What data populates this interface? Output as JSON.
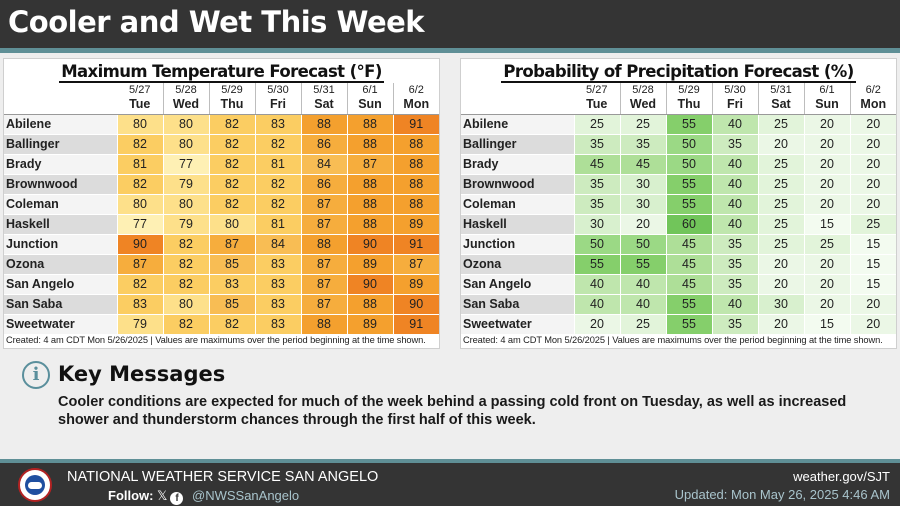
{
  "header": {
    "title": "Cooler and Wet This Week"
  },
  "temp_table": {
    "title": "Maximum Temperature Forecast (°F)",
    "footnote": "Created: 4 am CDT Mon 5/26/2025  |  Values are maximums over the period beginning at the time shown.",
    "dates": [
      "5/27",
      "5/28",
      "5/29",
      "5/30",
      "5/31",
      "6/1",
      "6/2"
    ],
    "days": [
      "Tue",
      "Wed",
      "Thu",
      "Fri",
      "Sat",
      "Sun",
      "Mon"
    ],
    "rows": [
      {
        "location": "Abilene",
        "values": [
          "80",
          "80",
          "82",
          "83",
          "88",
          "88",
          "91"
        ]
      },
      {
        "location": "Ballinger",
        "values": [
          "82",
          "80",
          "82",
          "82",
          "86",
          "88",
          "88"
        ]
      },
      {
        "location": "Brady",
        "values": [
          "81",
          "77",
          "82",
          "81",
          "84",
          "87",
          "88"
        ]
      },
      {
        "location": "Brownwood",
        "values": [
          "82",
          "79",
          "82",
          "82",
          "86",
          "88",
          "88"
        ]
      },
      {
        "location": "Coleman",
        "values": [
          "80",
          "80",
          "82",
          "82",
          "87",
          "88",
          "88"
        ]
      },
      {
        "location": "Haskell",
        "values": [
          "77",
          "79",
          "80",
          "81",
          "87",
          "88",
          "89"
        ]
      },
      {
        "location": "Junction",
        "values": [
          "90",
          "82",
          "87",
          "84",
          "88",
          "90",
          "91"
        ]
      },
      {
        "location": "Ozona",
        "values": [
          "87",
          "82",
          "85",
          "83",
          "87",
          "89",
          "87"
        ]
      },
      {
        "location": "San Angelo",
        "values": [
          "82",
          "82",
          "83",
          "83",
          "87",
          "90",
          "89"
        ]
      },
      {
        "location": "San Saba",
        "values": [
          "83",
          "80",
          "85",
          "83",
          "87",
          "88",
          "90"
        ]
      },
      {
        "location": "Sweetwater",
        "values": [
          "79",
          "82",
          "82",
          "83",
          "88",
          "89",
          "91"
        ]
      }
    ]
  },
  "precip_table": {
    "title": "Probability of Precipitation Forecast (%)",
    "footnote": "Created: 4 am CDT Mon 5/26/2025  |  Values are maximums over the period beginning at the time shown.",
    "dates": [
      "5/27",
      "5/28",
      "5/29",
      "5/30",
      "5/31",
      "6/1",
      "6/2"
    ],
    "days": [
      "Tue",
      "Wed",
      "Thu",
      "Fri",
      "Sat",
      "Sun",
      "Mon"
    ],
    "rows": [
      {
        "location": "Abilene",
        "values": [
          "25",
          "25",
          "55",
          "40",
          "25",
          "20",
          "20"
        ]
      },
      {
        "location": "Ballinger",
        "values": [
          "35",
          "35",
          "50",
          "35",
          "20",
          "20",
          "20"
        ]
      },
      {
        "location": "Brady",
        "values": [
          "45",
          "45",
          "50",
          "40",
          "25",
          "20",
          "20"
        ]
      },
      {
        "location": "Brownwood",
        "values": [
          "35",
          "30",
          "55",
          "40",
          "25",
          "20",
          "20"
        ]
      },
      {
        "location": "Coleman",
        "values": [
          "35",
          "30",
          "55",
          "40",
          "25",
          "20",
          "20"
        ]
      },
      {
        "location": "Haskell",
        "values": [
          "30",
          "20",
          "60",
          "40",
          "25",
          "15",
          "25"
        ]
      },
      {
        "location": "Junction",
        "values": [
          "50",
          "50",
          "45",
          "35",
          "25",
          "25",
          "15"
        ]
      },
      {
        "location": "Ozona",
        "values": [
          "55",
          "55",
          "45",
          "35",
          "20",
          "20",
          "15"
        ]
      },
      {
        "location": "San Angelo",
        "values": [
          "40",
          "40",
          "45",
          "35",
          "20",
          "20",
          "15"
        ]
      },
      {
        "location": "San Saba",
        "values": [
          "40",
          "40",
          "55",
          "40",
          "30",
          "20",
          "20"
        ]
      },
      {
        "location": "Sweetwater",
        "values": [
          "20",
          "25",
          "55",
          "35",
          "20",
          "15",
          "20"
        ]
      }
    ]
  },
  "key_messages": {
    "icon": "info-icon",
    "title": "Key Messages",
    "body": "Cooler conditions are expected for much of the week behind a passing cold front on Tuesday, as well as increased shower and thunderstorm chances through the first half of this week."
  },
  "footer": {
    "logo": "nws-logo",
    "organization": "NATIONAL WEATHER SERVICE SAN ANGELO",
    "follow_label": "Follow:",
    "social_icons": [
      "x-icon",
      "facebook-icon"
    ],
    "handle": "@NWSSanAngelo",
    "website": "weather.gov/SJT",
    "updated": "Updated: Mon May 26, 2025 4:46 AM"
  },
  "colors": {
    "header_bg": "#343434",
    "accent_stripe": "#5f8f96",
    "info_icon": "#5a8f9c"
  }
}
